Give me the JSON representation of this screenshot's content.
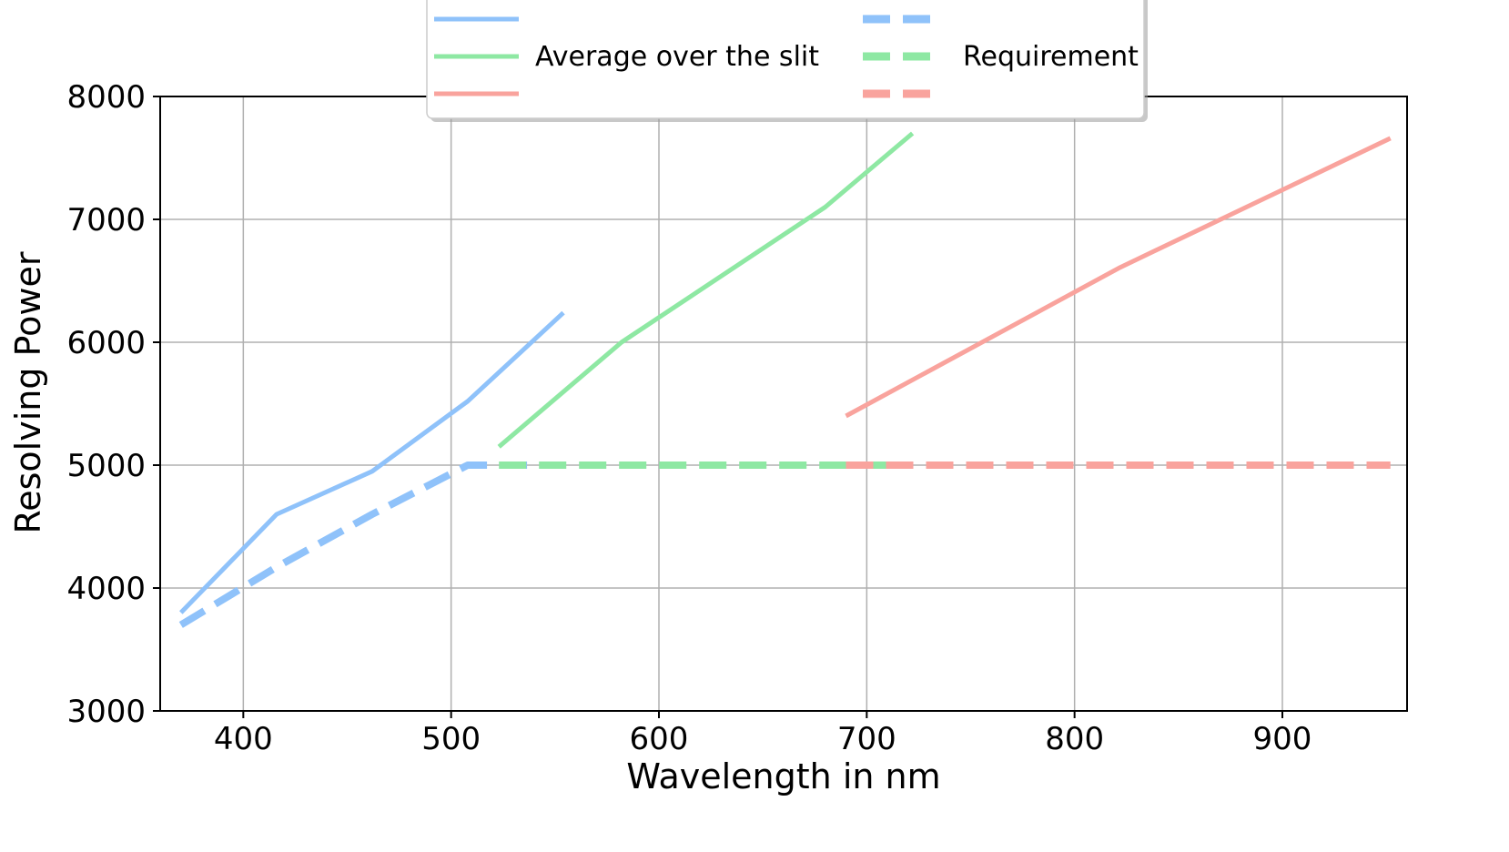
{
  "chart_data": {
    "type": "line",
    "title": "",
    "xlabel": "Wavelength in nm",
    "ylabel": "Resolving Power",
    "xlim": [
      360,
      960
    ],
    "ylim": [
      3000,
      8000
    ],
    "xticks": [
      400,
      500,
      600,
      700,
      800,
      900
    ],
    "yticks": [
      3000,
      4000,
      5000,
      6000,
      7000,
      8000
    ],
    "grid": true,
    "legend": {
      "placement": "top-center",
      "columns": 2,
      "labels": [
        "",
        "Average over the slit",
        "",
        "",
        "Requirement",
        ""
      ]
    },
    "series": [
      {
        "color": "#8fc2fa",
        "dash": "solid",
        "x": [
          370,
          416,
          462,
          508,
          554
        ],
        "y": [
          3800,
          4600,
          4950,
          5520,
          6240
        ]
      },
      {
        "name": "Average over the slit",
        "color": "#8ee8a3",
        "dash": "solid",
        "x": [
          523,
          582,
          680,
          722
        ],
        "y": [
          5150,
          6000,
          7100,
          7700
        ]
      },
      {
        "color": "#f9a39d",
        "dash": "solid",
        "x": [
          690,
          822,
          952
        ],
        "y": [
          5400,
          6610,
          7660
        ]
      },
      {
        "color": "#8fc2fa",
        "dash": "dashed",
        "x": [
          370,
          416,
          462,
          508,
          554
        ],
        "y": [
          3700,
          4170,
          4600,
          5000,
          5000
        ]
      },
      {
        "name": "Requirement",
        "color": "#8ee8a3",
        "dash": "dashed",
        "x": [
          523,
          722
        ],
        "y": [
          5000,
          5000
        ]
      },
      {
        "color": "#f9a39d",
        "dash": "dashed",
        "x": [
          690,
          952
        ],
        "y": [
          5000,
          5000
        ]
      }
    ]
  }
}
